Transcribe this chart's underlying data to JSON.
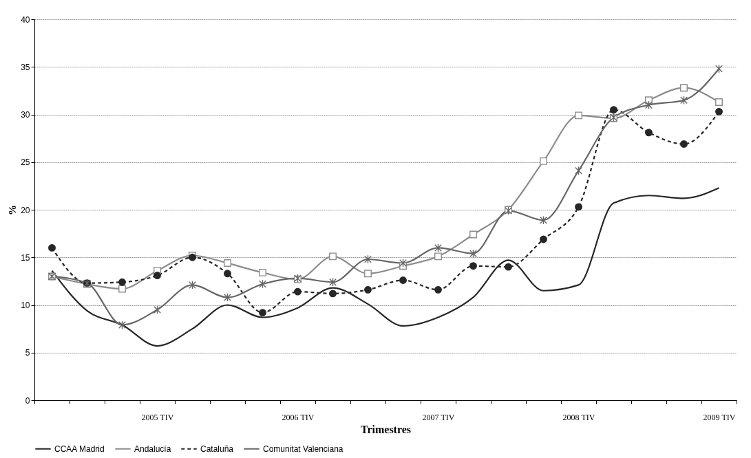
{
  "chart_data": {
    "type": "line",
    "xlabel": "Trimestres",
    "ylabel": "%",
    "categories": [
      null,
      null,
      null,
      "2005 TIV",
      null,
      null,
      null,
      "2006 TIV",
      null,
      null,
      null,
      "2007 TIV",
      null,
      null,
      null,
      "2008 TIV",
      null,
      null,
      null,
      "2009 TIV"
    ],
    "ylim": [
      0,
      40
    ],
    "yticks": [
      0,
      5,
      10,
      15,
      20,
      25,
      30,
      35,
      40
    ],
    "grid": "y",
    "legend": "bottom",
    "series": [
      {
        "name": "CCAA Madrid",
        "color": "#262626",
        "marker": "none",
        "line_style": "solid",
        "values": [
          13.6,
          9.4,
          7.9,
          5.7,
          7.5,
          10.0,
          8.7,
          9.7,
          11.8,
          10.1,
          7.8,
          8.7,
          10.8,
          14.7,
          11.5,
          12.1,
          20.7,
          21.5,
          21.2,
          22.3
        ]
      },
      {
        "name": "Andalucía",
        "color": "#8c8c8c",
        "marker": "square",
        "line_style": "solid",
        "values": [
          13.0,
          12.2,
          11.7,
          13.6,
          15.2,
          14.4,
          13.4,
          12.7,
          15.1,
          13.3,
          14.1,
          15.1,
          17.4,
          20.0,
          25.1,
          29.9,
          29.6,
          31.5,
          32.8,
          31.3
        ]
      },
      {
        "name": "Cataluña",
        "color": "#262626",
        "marker": "circle",
        "line_style": "dashed",
        "values": [
          16.0,
          12.3,
          12.4,
          13.1,
          15.0,
          13.3,
          9.2,
          11.4,
          11.2,
          11.6,
          12.6,
          11.6,
          14.1,
          14.0,
          16.9,
          20.3,
          30.5,
          28.1,
          26.9,
          30.3
        ]
      },
      {
        "name": "Comunitat Valenciana",
        "color": "#666666",
        "marker": "cross",
        "line_style": "solid",
        "values": [
          13.0,
          12.3,
          7.9,
          9.5,
          12.1,
          10.8,
          12.2,
          12.8,
          12.4,
          14.8,
          14.4,
          16.0,
          15.4,
          19.9,
          18.9,
          24.1,
          29.7,
          31.0,
          31.5,
          34.8
        ]
      }
    ]
  }
}
